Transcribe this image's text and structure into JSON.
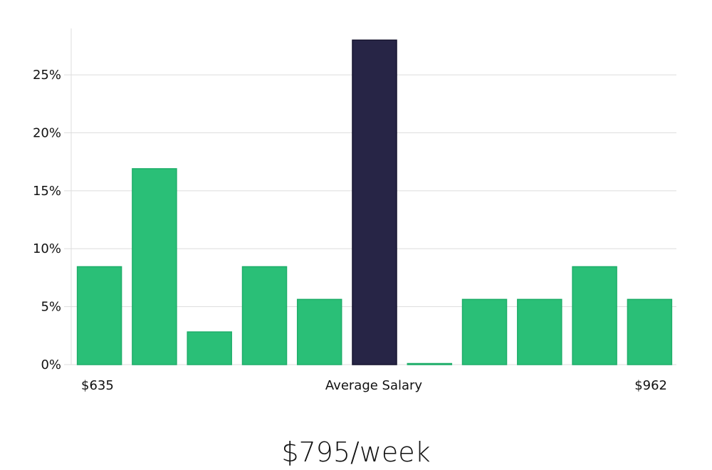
{
  "chart_data": {
    "type": "bar",
    "values": [
      8.45,
      16.9,
      2.82,
      8.45,
      5.63,
      28.0,
      0.05,
      5.63,
      5.63,
      8.45,
      5.63
    ],
    "highlight_index": 5,
    "ylim": [
      0,
      29
    ],
    "yticks": [
      {
        "value": 0,
        "label": "0%"
      },
      {
        "value": 5,
        "label": "5%"
      },
      {
        "value": 10,
        "label": "10%"
      },
      {
        "value": 15,
        "label": "15%"
      },
      {
        "value": 20,
        "label": "20%"
      },
      {
        "value": 25,
        "label": "25%"
      }
    ],
    "x_labels": {
      "left": "$635",
      "center": "Average Salary",
      "right": "$962"
    },
    "grid": true,
    "colors": {
      "bar": "#2abf77",
      "bar_border": "#1fae6a",
      "highlight": "#272546",
      "highlight_border": "#15132e"
    }
  },
  "salary": "$795/week"
}
